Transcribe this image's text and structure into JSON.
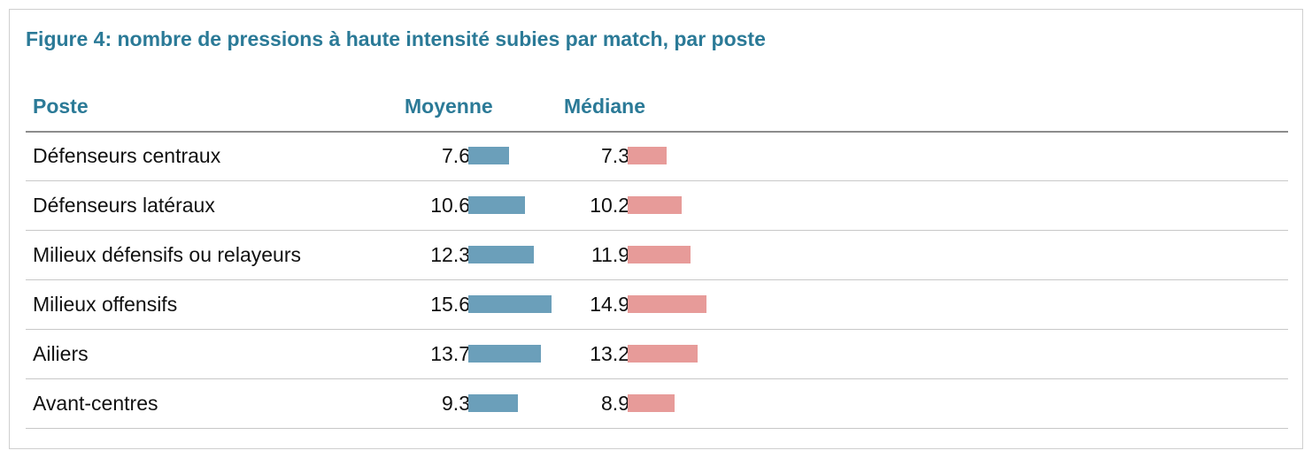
{
  "chart_data": {
    "type": "table",
    "title": "Figure 4: nombre de pressions à haute intensité subies par match, par poste",
    "columns": [
      "Poste",
      "Moyenne",
      "Médiane"
    ],
    "rows": [
      {
        "poste": "Défenseurs centraux",
        "moyenne": 7.6,
        "mediane": 7.3,
        "moyenne_label": "7.6",
        "mediane_label": "7.3"
      },
      {
        "poste": "Défenseurs latéraux",
        "moyenne": 10.6,
        "mediane": 10.2,
        "moyenne_label": "10.6",
        "mediane_label": "10.2"
      },
      {
        "poste": "Milieux défensifs ou relayeurs",
        "moyenne": 12.3,
        "mediane": 11.9,
        "moyenne_label": "12.3",
        "mediane_label": "11.9"
      },
      {
        "poste": "Milieux offensifs",
        "moyenne": 15.6,
        "mediane": 14.9,
        "moyenne_label": "15.6",
        "mediane_label": "14.9"
      },
      {
        "poste": "Ailiers",
        "moyenne": 13.7,
        "mediane": 13.2,
        "moyenne_label": "13.7",
        "mediane_label": "13.2"
      },
      {
        "poste": "Avant-centres",
        "moyenne": 9.3,
        "mediane": 8.9,
        "moyenne_label": "9.3",
        "mediane_label": "8.9"
      }
    ],
    "colors": {
      "title": "#2b7a97",
      "moyenne_bar": "#6b9fba",
      "mediane_bar": "#e79b99"
    }
  }
}
